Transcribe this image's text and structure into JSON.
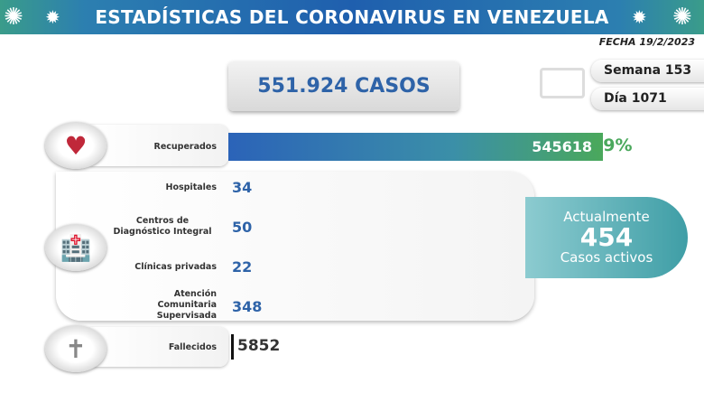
{
  "header": {
    "title": "ESTADÍSTICAS DEL CORONAVIRUS EN VENEZUELA",
    "date": "FECHA 19/2/2023"
  },
  "total_cases": "551.924 CASOS",
  "week": "Semana 153",
  "day": "Día 1071",
  "recovered": {
    "label": "Recuperados",
    "value": "545618",
    "percent": "99%",
    "fraction": 0.99
  },
  "active_breakdown": [
    {
      "label": "Hospitales",
      "value": "34"
    },
    {
      "label": "Centros de Diagnóstico Integral",
      "value": "50"
    },
    {
      "label": "Clínicas privadas",
      "value": "22"
    },
    {
      "label": "Atención Comunitaria Supervisada",
      "value": "348"
    }
  ],
  "active": {
    "prefix": "Actualmente",
    "value": "454",
    "suffix": "Casos activos"
  },
  "deaths": {
    "label": "Fallecidos",
    "value": "5852"
  },
  "colors": {
    "accent_blue": "#2e63a8",
    "green": "#4aa85c",
    "teal": "#3f9ea6"
  },
  "icons": [
    "virus-icon",
    "calendar-icon",
    "heart-pulse-icon",
    "hospital-icon",
    "tombstone-icon"
  ]
}
